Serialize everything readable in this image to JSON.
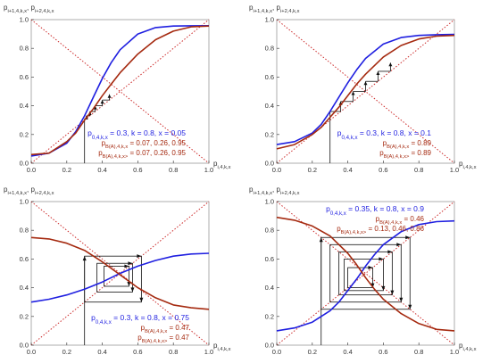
{
  "colors": {
    "blue": "#1f1fe0",
    "red": "#a52a10",
    "diag": "#cc2a2a",
    "axis": "#444444",
    "frame": "#9a9a9a"
  },
  "panels_common": {
    "ylabel": "p_{i+1,4,k,x}, p_{i+2,4,k,x}",
    "xlabel": "p_{i,4,k,x}"
  },
  "chart_data": [
    {
      "type": "line",
      "title": "",
      "xlabel": "p_{i,4,k,x}",
      "ylabel": "p_{i+1,4,k,x}, p_{i+2,4,k,x}",
      "xlim": [
        0,
        1
      ],
      "ylim": [
        0,
        1
      ],
      "x_ticks": [
        "0.0",
        "0.2",
        "0.4",
        "0.6",
        "0.8",
        "1.0"
      ],
      "y_ticks": [
        "0.0",
        "0.2",
        "0.4",
        "0.6",
        "0.8",
        "1.0"
      ],
      "params": {
        "p0": 0.3,
        "k": 0.8,
        "x": 0.05
      },
      "annotations": [
        {
          "text": "p_{0,4,k,x} = 0.3, k = 0.8, x = 0.05",
          "color": "blue"
        },
        {
          "text": "p_{B(A),4,k,x} = 0.07, 0.26, 0.95",
          "color": "red"
        },
        {
          "text": "p_{B(A),4,k,x>} = 0.07, 0.26, 0.95",
          "color": "red"
        }
      ],
      "series": [
        {
          "color": "blue",
          "x": [
            0,
            0.1,
            0.2,
            0.25,
            0.3,
            0.35,
            0.4,
            0.45,
            0.5,
            0.6,
            0.7,
            0.8,
            0.9,
            1.0
          ],
          "y": [
            0.05,
            0.07,
            0.14,
            0.22,
            0.33,
            0.46,
            0.59,
            0.7,
            0.79,
            0.9,
            0.945,
            0.955,
            0.957,
            0.958
          ]
        },
        {
          "color": "red",
          "x": [
            0,
            0.1,
            0.2,
            0.25,
            0.3,
            0.35,
            0.4,
            0.45,
            0.5,
            0.6,
            0.7,
            0.8,
            0.9,
            1.0
          ],
          "y": [
            0.06,
            0.07,
            0.15,
            0.21,
            0.3,
            0.38,
            0.47,
            0.55,
            0.63,
            0.76,
            0.86,
            0.92,
            0.95,
            0.955
          ]
        }
      ],
      "cobweb_x": [
        0.3,
        0.31,
        0.33,
        0.36,
        0.4,
        0.44,
        0.48
      ]
    },
    {
      "type": "line",
      "title": "",
      "xlabel": "p_{i,4,k,x}",
      "ylabel": "p_{i+1,4,k,x}, p_{i+2,4,k,x}",
      "xlim": [
        0,
        1
      ],
      "ylim": [
        0,
        1
      ],
      "x_ticks": [
        "0.0",
        "0.2",
        "0.4",
        "0.6",
        "0.8",
        "1.0"
      ],
      "y_ticks": [
        "0.0",
        "0.2",
        "0.4",
        "0.6",
        "0.8",
        "1.0"
      ],
      "params": {
        "p0": 0.3,
        "k": 0.8,
        "x": 0.1
      },
      "annotations": [
        {
          "text": "p_{0,4,k,x} = 0.3, k = 0.8, x = 0.1",
          "color": "blue"
        },
        {
          "text": "p_{B(A),4,k,x} = 0.89",
          "color": "red"
        },
        {
          "text": "p_{B(A),4,k,x>} = 0.89",
          "color": "red"
        }
      ],
      "series": [
        {
          "color": "blue",
          "x": [
            0,
            0.1,
            0.2,
            0.25,
            0.3,
            0.35,
            0.4,
            0.45,
            0.5,
            0.6,
            0.7,
            0.8,
            0.9,
            1.0
          ],
          "y": [
            0.13,
            0.15,
            0.21,
            0.27,
            0.36,
            0.46,
            0.56,
            0.65,
            0.73,
            0.83,
            0.875,
            0.89,
            0.895,
            0.897
          ]
        },
        {
          "color": "red",
          "x": [
            0,
            0.1,
            0.2,
            0.25,
            0.3,
            0.35,
            0.4,
            0.45,
            0.5,
            0.6,
            0.7,
            0.8,
            0.9,
            1.0
          ],
          "y": [
            0.1,
            0.13,
            0.2,
            0.25,
            0.32,
            0.39,
            0.47,
            0.55,
            0.62,
            0.74,
            0.82,
            0.865,
            0.885,
            0.89
          ]
        }
      ],
      "cobweb_x": [
        0.3,
        0.36,
        0.43,
        0.5,
        0.57,
        0.64,
        0.7
      ]
    },
    {
      "type": "line",
      "title": "",
      "xlabel": "p_{i,4,k,x}",
      "ylabel": "p_{i+1,4,k,x}, p_{i+2,4,k,x}",
      "xlim": [
        0,
        1
      ],
      "ylim": [
        0,
        1
      ],
      "x_ticks": [
        "0.0",
        "0.2",
        "0.4",
        "0.6",
        "0.8",
        "1.0"
      ],
      "y_ticks": [
        "0.0",
        "0.2",
        "0.4",
        "0.6",
        "0.8",
        "1.0"
      ],
      "params": {
        "p0": 0.3,
        "k": 0.8,
        "x": 0.75
      },
      "annotations": [
        {
          "text": "p_{0,4,k,x} = 0.3, k = 0.8, x = 0.75",
          "color": "blue"
        },
        {
          "text": "p_{B(A),4,k,x} = 0.47",
          "color": "red"
        },
        {
          "text": "p_{B(A),4,k,x>} = 0.47",
          "color": "red"
        }
      ],
      "series": [
        {
          "color": "blue",
          "x": [
            0,
            0.1,
            0.2,
            0.3,
            0.4,
            0.5,
            0.6,
            0.7,
            0.8,
            0.9,
            1.0
          ],
          "y": [
            0.3,
            0.32,
            0.35,
            0.39,
            0.44,
            0.5,
            0.55,
            0.59,
            0.62,
            0.635,
            0.64
          ]
        },
        {
          "color": "red",
          "x": [
            0,
            0.1,
            0.2,
            0.3,
            0.4,
            0.5,
            0.6,
            0.7,
            0.8,
            0.9,
            1.0
          ],
          "y": [
            0.75,
            0.74,
            0.71,
            0.66,
            0.58,
            0.49,
            0.4,
            0.33,
            0.28,
            0.26,
            0.25
          ]
        }
      ],
      "cobweb_box": [
        [
          0.3,
          0.62
        ],
        [
          0.37,
          0.57
        ],
        [
          0.41,
          0.55
        ]
      ]
    },
    {
      "type": "line",
      "title": "",
      "xlabel": "p_{i,4,k,x}",
      "ylabel": "p_{i+1,4,k,x}, p_{i+2,4,k,x}",
      "xlim": [
        0,
        1
      ],
      "ylim": [
        0,
        1
      ],
      "x_ticks": [
        "0.0",
        "0.2",
        "0.4",
        "0.6",
        "0.8",
        "1.0"
      ],
      "y_ticks": [
        "0.0",
        "0.2",
        "0.4",
        "0.6",
        "0.8",
        "1.0"
      ],
      "params": {
        "p0": 0.35,
        "k": 0.8,
        "x": 0.9
      },
      "annotations": [
        {
          "text": "p_{0,4,k,x} = 0.35, k = 0.8, x = 0.9",
          "color": "blue"
        },
        {
          "text": "p_{B(A),4,k,x} = 0.46",
          "color": "red"
        },
        {
          "text": "p_{B(A),4,k,x>} = 0.13, 0.46, 0.86",
          "color": "red"
        }
      ],
      "series": [
        {
          "color": "blue",
          "x": [
            0,
            0.1,
            0.2,
            0.3,
            0.35,
            0.4,
            0.45,
            0.5,
            0.55,
            0.6,
            0.7,
            0.8,
            0.9,
            1.0
          ],
          "y": [
            0.1,
            0.12,
            0.16,
            0.24,
            0.3,
            0.38,
            0.46,
            0.55,
            0.63,
            0.7,
            0.79,
            0.84,
            0.86,
            0.865
          ]
        },
        {
          "color": "red",
          "x": [
            0,
            0.1,
            0.2,
            0.3,
            0.4,
            0.45,
            0.5,
            0.55,
            0.6,
            0.7,
            0.8,
            0.9,
            1.0
          ],
          "y": [
            0.89,
            0.87,
            0.83,
            0.76,
            0.64,
            0.56,
            0.47,
            0.39,
            0.32,
            0.22,
            0.15,
            0.11,
            0.1
          ]
        }
      ],
      "cobweb_box": [
        [
          0.25,
          0.75
        ],
        [
          0.3,
          0.7
        ],
        [
          0.35,
          0.65
        ],
        [
          0.38,
          0.6
        ],
        [
          0.4,
          0.54
        ]
      ]
    }
  ]
}
